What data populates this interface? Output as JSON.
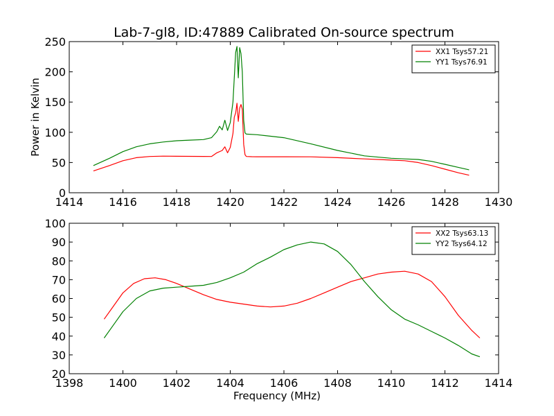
{
  "figure": {
    "title": "Lab-7-gl8, ID:47889 Calibrated On-source spectrum"
  },
  "chart_data": [
    {
      "type": "line",
      "title": "Lab-7-gl8, ID:47889 Calibrated On-source spectrum",
      "xlabel": "",
      "ylabel": "Power in Kelvin",
      "xlim": [
        1414,
        1430
      ],
      "ylim": [
        0,
        250
      ],
      "xticks": [
        "1414",
        "1416",
        "1418",
        "1420",
        "1422",
        "1424",
        "1426",
        "1428",
        "1430"
      ],
      "yticks": [
        "0",
        "50",
        "100",
        "150",
        "200",
        "250"
      ],
      "grid": false,
      "legend_position": "top-right",
      "series": [
        {
          "name": "XX1 Tsys57.21",
          "color": "#ff0000",
          "x": [
            1414.9,
            1415.5,
            1416,
            1416.5,
            1417,
            1417.5,
            1418,
            1418.5,
            1419,
            1419.3,
            1419.5,
            1419.7,
            1419.8,
            1419.9,
            1420.0,
            1420.1,
            1420.15,
            1420.2,
            1420.25,
            1420.3,
            1420.35,
            1420.4,
            1420.45,
            1420.5,
            1420.55,
            1420.6,
            1420.8,
            1421,
            1422,
            1423,
            1424,
            1425,
            1426,
            1426.5,
            1427,
            1427.5,
            1428,
            1428.5,
            1428.9
          ],
          "y": [
            36,
            45,
            53,
            58,
            60,
            60.5,
            60.3,
            60.2,
            60.1,
            60,
            66,
            70,
            76,
            66,
            75,
            98,
            125,
            132,
            148,
            118,
            140,
            146,
            138,
            80,
            63,
            60,
            59.6,
            59.5,
            59.5,
            59.4,
            58,
            56,
            54,
            53,
            50,
            45,
            39,
            33,
            29
          ]
        },
        {
          "name": "YY1 Tsys76.91",
          "color": "#008000",
          "x": [
            1414.9,
            1415.5,
            1416,
            1416.5,
            1417,
            1417.5,
            1418,
            1418.5,
            1419,
            1419.3,
            1419.5,
            1419.6,
            1419.7,
            1419.8,
            1419.9,
            1420.0,
            1420.1,
            1420.15,
            1420.2,
            1420.25,
            1420.3,
            1420.35,
            1420.4,
            1420.45,
            1420.5,
            1420.55,
            1420.6,
            1421,
            1422,
            1423,
            1424,
            1425,
            1426,
            1426.5,
            1427,
            1427.5,
            1428,
            1428.5,
            1428.9
          ],
          "y": [
            45,
            57,
            68,
            76,
            81,
            84,
            86,
            87,
            88,
            91,
            101,
            110,
            104,
            120,
            103,
            116,
            150,
            190,
            232,
            242,
            190,
            240,
            230,
            200,
            120,
            99,
            97,
            96,
            91,
            81,
            70,
            61,
            57,
            56,
            55,
            52,
            47,
            42,
            38
          ]
        }
      ]
    },
    {
      "type": "line",
      "title": "",
      "xlabel": "Frequency (MHz)",
      "ylabel": "",
      "xlim": [
        1398,
        1414
      ],
      "ylim": [
        20,
        100
      ],
      "xticks": [
        "1398",
        "1400",
        "1402",
        "1404",
        "1406",
        "1408",
        "1410",
        "1412",
        "1414"
      ],
      "yticks": [
        "20",
        "30",
        "40",
        "50",
        "60",
        "70",
        "80",
        "90",
        "100"
      ],
      "grid": false,
      "legend_position": "top-right",
      "series": [
        {
          "name": "XX2 Tsys63.13",
          "color": "#ff0000",
          "x": [
            1399.3,
            1399.6,
            1400,
            1400.4,
            1400.8,
            1401.2,
            1401.6,
            1402,
            1402.5,
            1403,
            1403.5,
            1404,
            1404.5,
            1405,
            1405.5,
            1406,
            1406.5,
            1407,
            1407.5,
            1408,
            1408.5,
            1409,
            1409.5,
            1410,
            1410.5,
            1411,
            1411.5,
            1412,
            1412.5,
            1413,
            1413.3
          ],
          "y": [
            49,
            55,
            63,
            68,
            70.5,
            71,
            70,
            68,
            65,
            62,
            59.5,
            58,
            57,
            56,
            55.5,
            56,
            57.5,
            60,
            63,
            66,
            69,
            71,
            73,
            74,
            74.5,
            73,
            69,
            61,
            51,
            43,
            39
          ]
        },
        {
          "name": "YY2 Tsys64.12",
          "color": "#008000",
          "x": [
            1399.3,
            1399.7,
            1400,
            1400.5,
            1401,
            1401.5,
            1402,
            1402.5,
            1403,
            1403.5,
            1404,
            1404.5,
            1405,
            1405.5,
            1406,
            1406.5,
            1407,
            1407.5,
            1408,
            1408.5,
            1409,
            1409.5,
            1410,
            1410.5,
            1411,
            1411.5,
            1412,
            1412.5,
            1413,
            1413.3
          ],
          "y": [
            39,
            47,
            53,
            60,
            64,
            65.5,
            66,
            66.5,
            67,
            68.5,
            71,
            74,
            78.5,
            82,
            86,
            88.5,
            90,
            89,
            85,
            78,
            69,
            61,
            54,
            49,
            46,
            42.5,
            39,
            35,
            30.5,
            29
          ]
        }
      ]
    }
  ]
}
